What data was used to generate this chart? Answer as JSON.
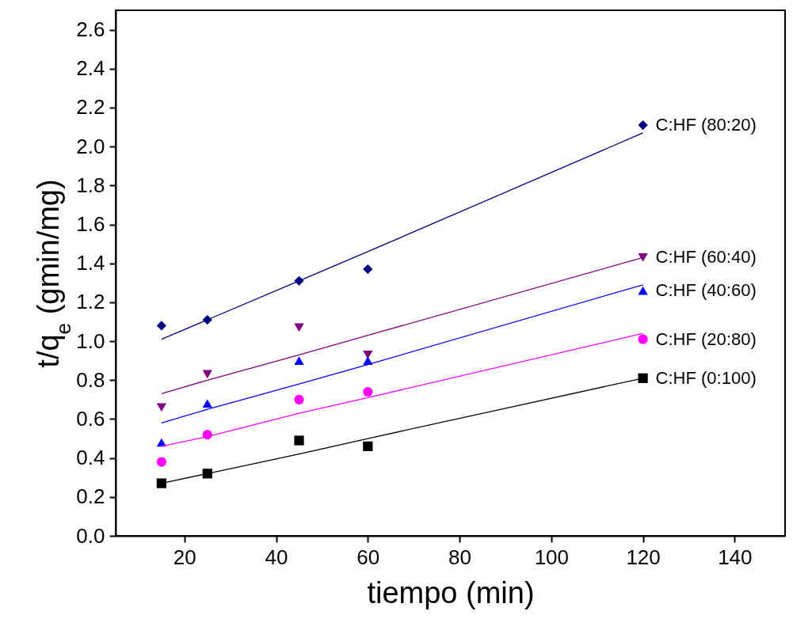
{
  "chart_data": {
    "type": "scatter",
    "xlabel": "tiempo (min)",
    "ylabel": "t/q$_{e}$ (gmin/mg)",
    "x": [
      15,
      25,
      45,
      60,
      120
    ],
    "xlim": [
      5,
      151
    ],
    "xticks": [
      20,
      40,
      60,
      80,
      100,
      120,
      140
    ],
    "ylim": [
      0,
      2.7
    ],
    "yticks": [
      {
        "value": 0,
        "label": "0.0"
      },
      {
        "value": 0.2,
        "label": "0.2"
      },
      {
        "value": 0.4,
        "label": "0.4"
      },
      {
        "value": 0.6,
        "label": "0.6"
      },
      {
        "value": 0.8,
        "label": "0.8"
      },
      {
        "value": 1,
        "label": "1.0"
      },
      {
        "value": 1.2,
        "label": "1.2"
      },
      {
        "value": 1.4,
        "label": "1.4"
      },
      {
        "value": 1.6,
        "label": "1.6"
      },
      {
        "value": 1.8,
        "label": "1.8"
      },
      {
        "value": 2,
        "label": "2.0"
      },
      {
        "value": 2.2,
        "label": "2.2"
      },
      {
        "value": 2.4,
        "label": "2.4"
      },
      {
        "value": 2.6,
        "label": "2.6"
      }
    ],
    "series": [
      {
        "name": "C:HF (80:20)",
        "color": "#000080",
        "marker": "diamond",
        "values": [
          1.08,
          1.11,
          1.31,
          1.37,
          2.11
        ]
      },
      {
        "name": "C:HF (60:40)",
        "color": "#800080",
        "marker": "triangle-down",
        "values": [
          0.66,
          0.83,
          1.07,
          0.93,
          1.43
        ]
      },
      {
        "name": "C:HF (40:60)",
        "color": "#0000ff",
        "marker": "triangle",
        "values": [
          0.48,
          0.68,
          0.9,
          0.9,
          1.26
        ]
      },
      {
        "name": "C:HF (20:80)",
        "color": "#ff00ff",
        "marker": "circle",
        "values": [
          0.38,
          0.52,
          0.7,
          0.74,
          1.01
        ]
      },
      {
        "name": "C:HF (0:100)",
        "color": "#000000",
        "marker": "square",
        "values": [
          0.27,
          0.32,
          0.49,
          0.46,
          0.81
        ]
      },
      {
        "type": "line",
        "color": "#000080",
        "values": [
          1.01,
          1.11,
          1.31,
          1.46,
          2.07
        ]
      },
      {
        "type": "line",
        "color": "#800080",
        "values": [
          0.73,
          0.8,
          0.93,
          1.03,
          1.43
        ]
      },
      {
        "type": "line",
        "color": "#0000ff",
        "values": [
          0.58,
          0.65,
          0.78,
          0.88,
          1.29
        ]
      },
      {
        "type": "line",
        "color": "#ff00ff",
        "values": [
          0.46,
          0.51,
          0.63,
          0.71,
          1.04
        ]
      },
      {
        "type": "line",
        "color": "#000000",
        "values": [
          0.27,
          0.32,
          0.42,
          0.5,
          0.81
        ]
      }
    ]
  }
}
